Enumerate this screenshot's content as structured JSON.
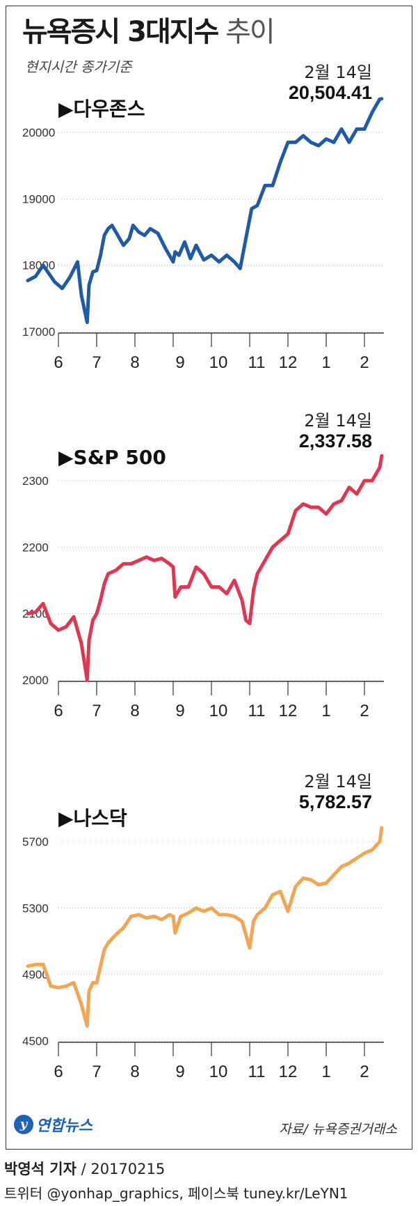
{
  "header": {
    "title_main": "뉴욕증시 3대지수",
    "title_suffix": "추이",
    "subtitle": "현지시간 종가기준"
  },
  "footer": {
    "logo_text": "연합뉴스",
    "source": "자료/ 뉴욕증권거래소",
    "reporter_name": "박영석 기자",
    "reporter_date": "/ 20170215",
    "social": "트위터 @yonhap_graphics, 페이스북 tuney.kr/LeYN1"
  },
  "chart_data": [
    {
      "type": "line",
      "title": "▶다우존스",
      "color": "#1f5aa6",
      "annotation_date": "2월 14일",
      "annotation_value": "20,504.41",
      "x_ticks": [
        "6",
        "7",
        "8",
        "9",
        "10",
        "11",
        "12",
        "1",
        "2"
      ],
      "y_ticks": [
        17000,
        18000,
        19000,
        20000
      ],
      "ylim": [
        17000,
        20600
      ],
      "grid": true,
      "x": [
        5.2,
        5.4,
        5.6,
        5.9,
        6.1,
        6.3,
        6.5,
        6.6,
        6.75,
        6.8,
        6.9,
        7.0,
        7.1,
        7.2,
        7.3,
        7.4,
        7.55,
        7.7,
        7.85,
        7.95,
        8.1,
        8.25,
        8.4,
        8.6,
        8.8,
        9.0,
        9.05,
        9.15,
        9.3,
        9.45,
        9.6,
        9.8,
        10.0,
        10.2,
        10.4,
        10.6,
        10.75,
        10.9,
        11.05,
        11.2,
        11.4,
        11.6,
        11.8,
        12.0,
        12.2,
        12.4,
        12.6,
        12.8,
        13.0,
        13.2,
        13.4,
        13.6,
        13.8,
        14.0,
        14.2,
        14.4,
        14.45
      ],
      "y": [
        17770,
        17830,
        18000,
        17750,
        17650,
        17820,
        18050,
        17550,
        17140,
        17700,
        17900,
        17920,
        18150,
        18450,
        18550,
        18600,
        18450,
        18300,
        18400,
        18600,
        18500,
        18450,
        18550,
        18480,
        18250,
        18050,
        18200,
        18150,
        18350,
        18100,
        18300,
        18080,
        18150,
        18050,
        18150,
        18050,
        17950,
        18400,
        18850,
        18900,
        19200,
        19200,
        19550,
        19850,
        19850,
        19950,
        19850,
        19800,
        19900,
        19850,
        20050,
        19850,
        20050,
        20050,
        20300,
        20500,
        20504.41
      ]
    },
    {
      "type": "line",
      "title": "▶S&P 500",
      "color": "#e23550",
      "annotation_date": "2월 14일",
      "annotation_value": "2,337.58",
      "x_ticks": [
        "6",
        "7",
        "8",
        "9",
        "10",
        "11",
        "12",
        "1",
        "2"
      ],
      "y_ticks": [
        2000,
        2100,
        2200,
        2300
      ],
      "ylim": [
        2000,
        2340
      ],
      "grid": true,
      "x": [
        5.2,
        5.4,
        5.6,
        5.8,
        6.0,
        6.2,
        6.4,
        6.6,
        6.75,
        6.8,
        6.9,
        7.0,
        7.1,
        7.2,
        7.3,
        7.5,
        7.7,
        7.9,
        8.1,
        8.3,
        8.5,
        8.7,
        8.9,
        9.0,
        9.05,
        9.2,
        9.4,
        9.6,
        9.8,
        10.0,
        10.2,
        10.4,
        10.6,
        10.8,
        10.9,
        11.0,
        11.1,
        11.2,
        11.4,
        11.6,
        11.8,
        12.0,
        12.2,
        12.4,
        12.6,
        12.8,
        13.0,
        13.2,
        13.4,
        13.6,
        13.8,
        14.0,
        14.2,
        14.4,
        14.45
      ],
      "y": [
        2100,
        2102,
        2115,
        2085,
        2075,
        2080,
        2095,
        2055,
        2000,
        2060,
        2090,
        2100,
        2120,
        2145,
        2160,
        2165,
        2175,
        2175,
        2180,
        2185,
        2180,
        2183,
        2175,
        2170,
        2125,
        2140,
        2140,
        2170,
        2160,
        2140,
        2140,
        2130,
        2150,
        2120,
        2090,
        2085,
        2135,
        2160,
        2180,
        2200,
        2210,
        2220,
        2255,
        2265,
        2260,
        2260,
        2250,
        2265,
        2270,
        2290,
        2280,
        2300,
        2300,
        2320,
        2337.58
      ]
    },
    {
      "type": "line",
      "title": "▶나스닥",
      "color": "#f2a654",
      "annotation_date": "2월 14일",
      "annotation_value": "5,782.57",
      "x_ticks": [
        "6",
        "7",
        "8",
        "9",
        "10",
        "11",
        "12",
        "1",
        "2"
      ],
      "y_ticks": [
        4500,
        4900,
        5300,
        5700
      ],
      "ylim": [
        4500,
        5800
      ],
      "grid": true,
      "x": [
        5.2,
        5.4,
        5.6,
        5.8,
        6.0,
        6.2,
        6.4,
        6.6,
        6.75,
        6.8,
        6.9,
        7.0,
        7.1,
        7.2,
        7.3,
        7.5,
        7.7,
        7.9,
        8.1,
        8.3,
        8.5,
        8.7,
        8.9,
        9.0,
        9.05,
        9.2,
        9.4,
        9.6,
        9.8,
        10.0,
        10.2,
        10.4,
        10.6,
        10.8,
        10.9,
        11.0,
        11.1,
        11.2,
        11.4,
        11.6,
        11.8,
        12.0,
        12.2,
        12.4,
        12.6,
        12.8,
        13.0,
        13.2,
        13.4,
        13.6,
        13.8,
        14.0,
        14.2,
        14.4,
        14.45
      ],
      "y": [
        4950,
        4960,
        4960,
        4830,
        4820,
        4830,
        4850,
        4720,
        4590,
        4800,
        4850,
        4850,
        4950,
        5050,
        5090,
        5140,
        5180,
        5250,
        5260,
        5240,
        5250,
        5230,
        5260,
        5250,
        5150,
        5250,
        5270,
        5300,
        5280,
        5300,
        5260,
        5260,
        5250,
        5220,
        5140,
        5060,
        5220,
        5260,
        5300,
        5380,
        5400,
        5280,
        5430,
        5480,
        5470,
        5440,
        5450,
        5500,
        5550,
        5570,
        5600,
        5630,
        5650,
        5700,
        5782.57
      ]
    }
  ]
}
